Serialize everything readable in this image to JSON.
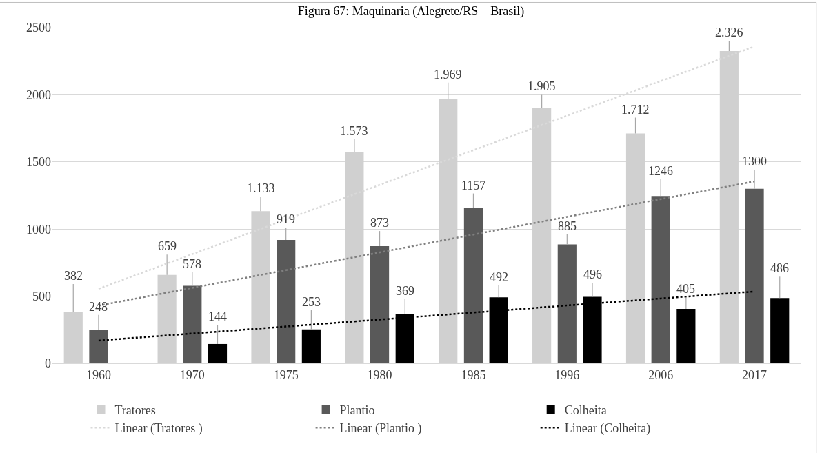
{
  "chart_data": {
    "type": "bar",
    "title": "Figura 67: Maquinaria (Alegrete/RS – Brasil)",
    "categories": [
      "1960",
      "1970",
      "1975",
      "1980",
      "1985",
      "1996",
      "2006",
      "2017"
    ],
    "series": [
      {
        "name": "Tratores",
        "color": "#d0d0d0",
        "values": [
          382,
          659,
          1133,
          1573,
          1969,
          1905,
          1712,
          2326
        ],
        "value_labels": [
          "382",
          "659",
          "1.133",
          "1.573",
          "1.969",
          "1.905",
          "1.712",
          "2.326"
        ],
        "errors": [
          [
            382,
            590
          ],
          [
            659,
            810
          ],
          [
            1133,
            1240
          ],
          [
            1573,
            1670
          ],
          [
            1969,
            2090
          ],
          [
            1905,
            2000
          ],
          [
            1712,
            1830
          ],
          [
            2326,
            2400
          ]
        ]
      },
      {
        "name": "Plantio",
        "color": "#595959",
        "values": [
          248,
          578,
          919,
          873,
          1157,
          885,
          1246,
          1300
        ],
        "value_labels": [
          "248",
          "578",
          "919",
          "873",
          "1157",
          "885",
          "1246",
          "1300"
        ],
        "errors": [
          [
            248,
            360
          ],
          [
            578,
            680
          ],
          [
            919,
            1010
          ],
          [
            873,
            985
          ],
          [
            1157,
            1265
          ],
          [
            885,
            960
          ],
          [
            1246,
            1370
          ],
          [
            1300,
            1440
          ]
        ]
      },
      {
        "name": "Colheita",
        "color": "#000000",
        "values": [
          null,
          144,
          253,
          369,
          492,
          496,
          405,
          486
        ],
        "value_labels": [
          null,
          "144",
          "253",
          "369",
          "492",
          "496",
          "405",
          "486"
        ],
        "errors": [
          null,
          [
            144,
            285
          ],
          [
            253,
            395
          ],
          [
            369,
            480
          ],
          [
            492,
            580
          ],
          [
            496,
            600
          ],
          [
            405,
            495
          ],
          [
            486,
            645
          ]
        ]
      },
      {
        "name": "Linear (Tratores )",
        "type": "line",
        "line_style": "dotted",
        "color": "#d9d9d9",
        "values": [
          555,
          813,
          1071,
          1329,
          1587,
          1844,
          2102,
          2360
        ]
      },
      {
        "name": "Linear (Plantio )",
        "type": "line",
        "line_style": "dotted",
        "color": "#808080",
        "values": [
          430,
          562,
          694,
          826,
          959,
          1091,
          1223,
          1355
        ]
      },
      {
        "name": "Linear (Colheita)",
        "type": "line",
        "line_style": "dotted",
        "color": "#000000",
        "values": [
          170,
          222,
          274,
          326,
          378,
          431,
          483,
          535
        ]
      }
    ],
    "ylim": [
      0,
      2500
    ],
    "yticks": [
      0,
      500,
      1000,
      1500,
      2000,
      2500
    ],
    "grid": "y",
    "legend": "bottom"
  }
}
